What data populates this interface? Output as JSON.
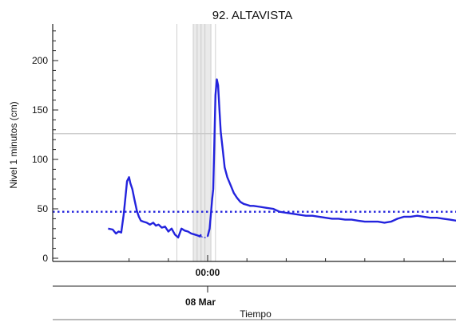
{
  "chart_data": {
    "type": "line",
    "title": "92. ALTAVISTA",
    "ylabel": "Nivel 1 minutos (cm)",
    "xlabel": "Tiempo",
    "ylim": [
      -3,
      235
    ],
    "y_ticks": [
      0,
      50,
      100,
      150,
      200
    ],
    "x_time_tick": "00:00",
    "x_date_tick": "08 Mar",
    "threshold_dotted": 47,
    "reference_line": 126,
    "colors": {
      "series": "#2323dd",
      "threshold": "#2323dd",
      "reference": "#c8c8c8",
      "gap": "#d9d9d9"
    },
    "series": [
      {
        "hours": [
          -15.2,
          -14.5,
          -14.0,
          -13.6,
          -13.2,
          -12.8,
          -12.3,
          -12.0,
          -11.8,
          -11.5,
          -11.2,
          -10.8,
          -10.5,
          -10.2,
          -9.8,
          -9.3,
          -8.8,
          -8.3,
          -7.9,
          -7.5,
          -7.0,
          -6.5,
          -6.0,
          -5.5,
          -5.0,
          -4.5,
          -4.0,
          -3.5,
          -3.0,
          -2.5,
          -2.0,
          -1.5,
          -1.2,
          -1.0
        ],
        "values": [
          30,
          29,
          25,
          27,
          26,
          45,
          78,
          82,
          76,
          70,
          60,
          48,
          42,
          38,
          37,
          36,
          34,
          36,
          33,
          34,
          31,
          32,
          27,
          30,
          24,
          21,
          30,
          28,
          27,
          25,
          24,
          23,
          22,
          24
        ]
      },
      {
        "hours": [
          -1.0,
          -0.6,
          -0.3,
          0.0
        ],
        "values": [
          22,
          21,
          21,
          22
        ]
      },
      {
        "hours": [
          0.0,
          0.3,
          0.5,
          0.7,
          0.85,
          1.0,
          1.2,
          1.4,
          1.6,
          1.8,
          2.0,
          2.3,
          2.6,
          3.0,
          3.5,
          4.0,
          4.5,
          5.0,
          5.5,
          6.0,
          6.5,
          7.0,
          8.0,
          9.0,
          10.0,
          11.0,
          12.0,
          13.0,
          14.0,
          15.0,
          16.0,
          17.0,
          18.0,
          19.0,
          20.0,
          21.0,
          22.0,
          23.0,
          24.0,
          25.0,
          26.0,
          27.0,
          28.0,
          29.0,
          30.0,
          31.0,
          32.0,
          33.0,
          34.0,
          35.0,
          36.0,
          37.0,
          38.0
        ],
        "values": [
          22,
          30,
          45,
          60,
          70,
          110,
          165,
          181,
          175,
          150,
          128,
          110,
          92,
          82,
          74,
          66,
          61,
          57,
          55,
          54,
          53,
          53,
          52,
          51,
          50,
          47,
          46,
          45,
          44,
          43,
          43,
          42,
          41,
          40,
          40,
          39,
          39,
          38,
          37,
          37,
          37,
          36,
          37,
          40,
          42,
          42,
          43,
          42,
          41,
          41,
          40,
          39,
          38
        ]
      }
    ]
  }
}
